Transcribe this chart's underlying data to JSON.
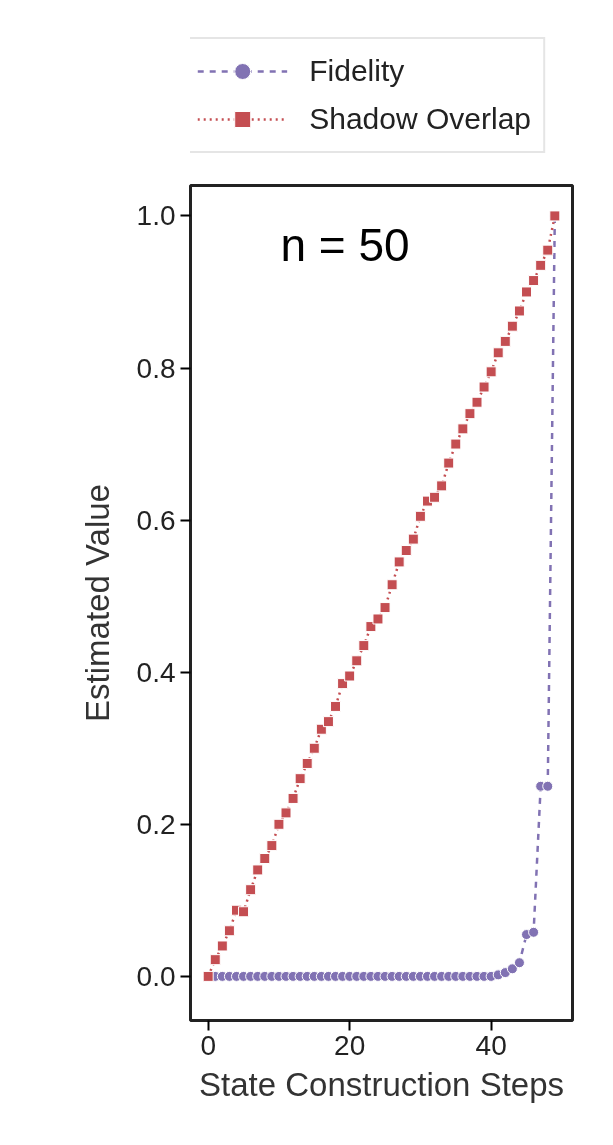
{
  "chart_data": {
    "type": "line",
    "xlabel": "State Construction Steps",
    "ylabel": "Estimated Value",
    "annotations": [
      "n = 50"
    ],
    "x": [
      0,
      1,
      2,
      3,
      4,
      5,
      6,
      7,
      8,
      9,
      10,
      11,
      12,
      13,
      14,
      15,
      16,
      17,
      18,
      19,
      20,
      21,
      22,
      23,
      24,
      25,
      26,
      27,
      28,
      29,
      30,
      31,
      32,
      33,
      34,
      35,
      36,
      37,
      38,
      39,
      40,
      41,
      42,
      43,
      44,
      45,
      46,
      47,
      48,
      49
    ],
    "series": [
      {
        "name": "Fidelity",
        "color": "#8172b3",
        "marker": "circle",
        "line_style": "dashed",
        "values": [
          0,
          0,
          0,
          0,
          0,
          0,
          0,
          0,
          0,
          0,
          0,
          0,
          0,
          0,
          0,
          0,
          0,
          0,
          0,
          0,
          0,
          0,
          0,
          0,
          0,
          0,
          0,
          0,
          0,
          0,
          0,
          0,
          0,
          0,
          0,
          0,
          0,
          0,
          0,
          0,
          0,
          0.002,
          0.005,
          0.01,
          0.018,
          0.055,
          0.058,
          0.25,
          0.25,
          1.0
        ]
      },
      {
        "name": "Shadow Overlap",
        "color": "#c44e52",
        "marker": "square",
        "line_style": "dotted",
        "values": [
          0,
          0.022,
          0.04,
          0.06,
          0.087,
          0.085,
          0.114,
          0.14,
          0.155,
          0.172,
          0.2,
          0.215,
          0.234,
          0.26,
          0.28,
          0.3,
          0.325,
          0.335,
          0.355,
          0.385,
          0.395,
          0.415,
          0.435,
          0.46,
          0.47,
          0.485,
          0.515,
          0.545,
          0.56,
          0.575,
          0.605,
          0.625,
          0.63,
          0.645,
          0.675,
          0.7,
          0.72,
          0.74,
          0.755,
          0.775,
          0.795,
          0.82,
          0.835,
          0.855,
          0.875,
          0.9,
          0.915,
          0.935,
          0.955,
          1.0
        ]
      }
    ],
    "xlim": [
      -2.5,
      51.5
    ],
    "ylim": [
      -0.058,
      1.04
    ],
    "xticks": [
      0,
      20,
      40
    ],
    "yticks": [
      {
        "value": 0,
        "label": "0.0"
      },
      {
        "value": 0.2,
        "label": "0.2"
      },
      {
        "value": 0.4,
        "label": "0.4"
      },
      {
        "value": 0.6,
        "label": "0.6"
      },
      {
        "value": 0.8,
        "label": "0.8"
      },
      {
        "value": 1.0,
        "label": "1.0"
      }
    ],
    "grid": false,
    "legend": "top right"
  }
}
